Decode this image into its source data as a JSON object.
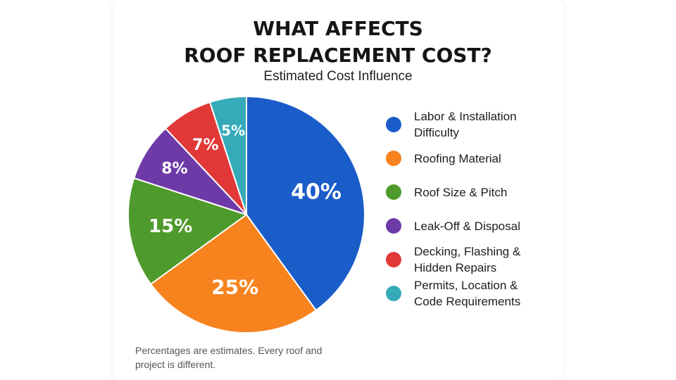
{
  "chart_data": {
    "type": "pie",
    "title_lines": [
      "WHAT AFFECTS",
      "ROOF REPLACEMENT COST?"
    ],
    "subtitle": "Estimated Cost Influence",
    "slices": [
      {
        "label_lines": [
          "Labor & Installation",
          "Difficulty"
        ],
        "value": 40,
        "display": "40%",
        "color": "#1a5cc8"
      },
      {
        "label_lines": [
          "Roofing Material"
        ],
        "value": 25,
        "display": "25%",
        "color": "#f7831f"
      },
      {
        "label_lines": [
          "Roof Size & Pitch"
        ],
        "value": 15,
        "display": "15%",
        "color": "#4f9a2c"
      },
      {
        "label_lines": [
          "Leak-Off & Disposal"
        ],
        "value": 8,
        "display": "8%",
        "color": "#6e3aa8"
      },
      {
        "label_lines": [
          "Decking, Flashing &",
          "Hidden Repairs"
        ],
        "value": 7,
        "display": "7%",
        "color": "#e23838"
      },
      {
        "label_lines": [
          "Permits, Location &",
          "Code Requirements"
        ],
        "value": 5,
        "display": "5%",
        "color": "#35aab9"
      }
    ],
    "legend_position": "right",
    "start_angle": "12 o'clock",
    "direction": "clockwise",
    "footnote_lines": [
      "Percentages are estimates. Every roof and",
      "project is different."
    ]
  }
}
